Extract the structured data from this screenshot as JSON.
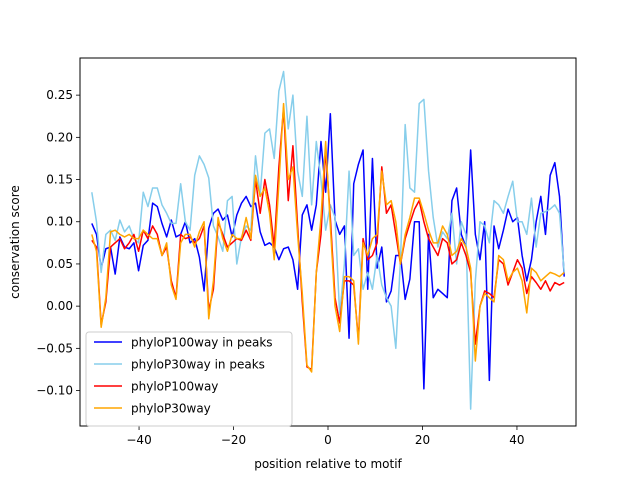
{
  "chart_data": {
    "type": "line",
    "title": "",
    "xlabel": "position relative to motif",
    "ylabel": "conservation score",
    "xlim": [
      -52.5,
      52.5
    ],
    "ylim": [
      -0.142,
      0.294
    ],
    "xticks": [
      -40,
      -20,
      0,
      20,
      40
    ],
    "yticks": [
      -0.1,
      -0.05,
      0.0,
      0.05,
      0.1,
      0.15,
      0.2,
      0.25
    ],
    "xtick_labels": [
      "−40",
      "−20",
      "0",
      "20",
      "40"
    ],
    "ytick_labels": [
      "−0.10",
      "−0.05",
      "0.00",
      "0.05",
      "0.10",
      "0.15",
      "0.20",
      "0.25"
    ],
    "grid": false,
    "legend": "lower-left",
    "x_start": -50,
    "x_end": 50,
    "series": [
      {
        "name": "phyloP100way in peaks",
        "color": "#0000ff",
        "values": [
          0.098,
          0.085,
          0.045,
          0.068,
          0.07,
          0.038,
          0.082,
          0.07,
          0.068,
          0.075,
          0.042,
          0.072,
          0.078,
          0.122,
          0.118,
          0.098,
          0.082,
          0.102,
          0.082,
          0.085,
          0.1,
          0.075,
          0.08,
          0.058,
          0.018,
          0.092,
          0.11,
          0.115,
          0.102,
          0.108,
          0.082,
          0.108,
          0.122,
          0.13,
          0.118,
          0.122,
          0.088,
          0.072,
          0.075,
          0.07,
          0.055,
          0.068,
          0.07,
          0.055,
          0.02,
          0.108,
          0.12,
          0.09,
          0.12,
          0.195,
          0.135,
          0.228,
          0.102,
          0.085,
          0.095,
          -0.038,
          0.145,
          0.168,
          0.185,
          0.02,
          0.175,
          0.045,
          0.07,
          0.005,
          0.018,
          0.06,
          0.06,
          0.008,
          0.032,
          0.1,
          0.1,
          -0.098,
          0.085,
          0.01,
          0.02,
          0.015,
          0.01,
          0.125,
          0.14,
          0.085,
          0.07,
          0.185,
          0.085,
          0.055,
          0.1,
          -0.088,
          0.095,
          0.068,
          0.09,
          0.115,
          0.1,
          0.105,
          0.06,
          0.03,
          0.055,
          0.1,
          0.13,
          0.085,
          0.155,
          0.17,
          0.13,
          0.035
        ]
      },
      {
        "name": "phyloP30way in peaks",
        "color": "#87ceeb",
        "values": [
          0.135,
          0.1,
          0.04,
          0.085,
          0.09,
          0.078,
          0.102,
          0.088,
          0.095,
          0.08,
          0.075,
          0.135,
          0.118,
          0.14,
          0.14,
          0.12,
          0.11,
          0.098,
          0.098,
          0.145,
          0.1,
          0.09,
          0.155,
          0.178,
          0.168,
          0.152,
          0.095,
          0.082,
          0.065,
          0.125,
          0.13,
          0.05,
          0.082,
          0.095,
          0.09,
          0.178,
          0.132,
          0.205,
          0.21,
          0.175,
          0.255,
          0.278,
          0.21,
          0.25,
          0.16,
          0.13,
          0.225,
          0.12,
          0.195,
          0.15,
          0.09,
          0.12,
          0.105,
          -0.01,
          0.05,
          0.16,
          0.06,
          0.068,
          0.02,
          0.04,
          0.02,
          0.06,
          0.025,
          0.01,
          0.0,
          -0.05,
          0.055,
          0.215,
          0.14,
          0.135,
          0.24,
          0.245,
          0.16,
          0.105,
          0.07,
          0.088,
          0.08,
          0.11,
          0.05,
          0.1,
          0.085,
          -0.122,
          0.03,
          0.1,
          0.095,
          0.075,
          0.125,
          0.12,
          0.11,
          0.13,
          0.148,
          0.1,
          0.1,
          0.085,
          0.128,
          0.07,
          0.11,
          0.112,
          0.115,
          0.12,
          0.11,
          0.04
        ]
      },
      {
        "name": "phyloP100way",
        "color": "#ff0000",
        "values": [
          0.078,
          0.07,
          -0.022,
          0.005,
          0.07,
          0.075,
          0.08,
          0.068,
          0.075,
          0.085,
          0.065,
          0.09,
          0.08,
          0.095,
          0.085,
          0.06,
          0.07,
          0.03,
          0.01,
          0.085,
          0.08,
          0.082,
          0.075,
          0.08,
          0.095,
          -0.005,
          0.02,
          0.1,
          0.085,
          0.07,
          0.075,
          0.08,
          0.078,
          0.09,
          0.078,
          0.15,
          0.11,
          0.15,
          0.12,
          0.07,
          0.165,
          0.235,
          0.125,
          0.19,
          0.095,
          0.005,
          -0.072,
          -0.075,
          0.04,
          0.085,
          0.185,
          0.105,
          0.01,
          -0.02,
          0.03,
          0.03,
          0.025,
          -0.04,
          0.08,
          0.055,
          0.06,
          0.075,
          0.165,
          0.11,
          0.12,
          0.085,
          0.05,
          0.08,
          0.098,
          0.115,
          0.125,
          0.1,
          0.08,
          0.07,
          0.06,
          0.08,
          0.075,
          0.05,
          0.055,
          0.075,
          0.06,
          0.04,
          -0.045,
          0.0,
          0.018,
          0.015,
          0.01,
          0.055,
          0.05,
          0.025,
          0.04,
          0.055,
          0.045,
          0.015,
          0.035,
          0.028,
          0.02,
          0.03,
          0.018,
          0.028,
          0.025,
          0.028
        ]
      },
      {
        "name": "phyloP30way",
        "color": "#ffa500",
        "values": [
          0.085,
          0.065,
          -0.025,
          0.01,
          0.088,
          0.09,
          0.085,
          0.082,
          0.085,
          0.08,
          0.08,
          0.09,
          0.085,
          0.08,
          0.08,
          0.06,
          0.075,
          0.025,
          0.008,
          0.075,
          0.085,
          0.085,
          0.07,
          0.088,
          0.1,
          -0.015,
          0.03,
          0.105,
          0.08,
          0.065,
          0.085,
          0.08,
          0.08,
          0.105,
          0.08,
          0.155,
          0.13,
          0.14,
          0.11,
          0.055,
          0.145,
          0.24,
          0.15,
          0.165,
          0.085,
          0.015,
          -0.07,
          -0.078,
          0.04,
          0.105,
          0.195,
          0.095,
          0.0,
          -0.03,
          0.035,
          0.035,
          0.03,
          -0.045,
          0.075,
          0.06,
          0.08,
          0.085,
          0.16,
          0.12,
          0.125,
          0.1,
          0.05,
          0.085,
          0.105,
          0.128,
          0.128,
          0.11,
          0.09,
          0.075,
          0.075,
          0.095,
          0.085,
          0.06,
          0.065,
          0.08,
          0.07,
          0.045,
          -0.065,
          0.0,
          0.015,
          0.01,
          0.005,
          0.06,
          0.055,
          0.03,
          0.04,
          0.045,
          0.03,
          -0.008,
          0.045,
          0.04,
          0.03,
          0.035,
          0.04,
          0.038,
          0.035,
          0.04
        ]
      }
    ]
  }
}
